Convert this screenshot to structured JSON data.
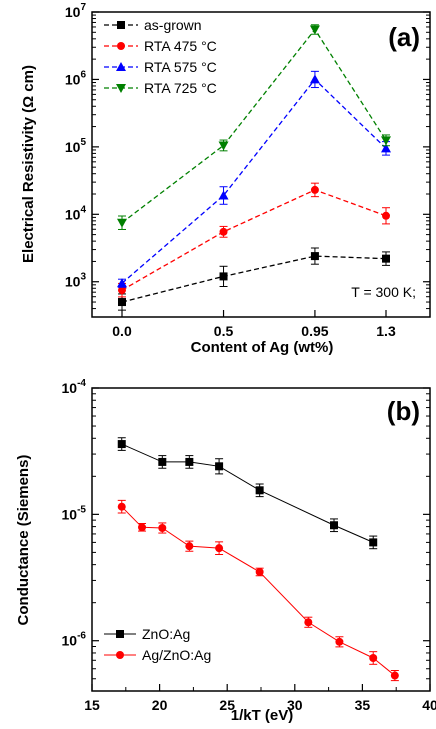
{
  "chart_data": [
    {
      "type": "line",
      "panel_label": "(a)",
      "xlabel": "Content of Ag  (wt%)",
      "ylabel": "Electrical Resistivity (Ω cm)",
      "categories": [
        "0.0",
        "0.5",
        "0.95",
        "1.3"
      ],
      "y_scale": "log",
      "ylim": [
        300,
        10000000
      ],
      "y_ticks": [
        {
          "value": 1000,
          "base": "10",
          "exp": "3"
        },
        {
          "value": 10000,
          "base": "10",
          "exp": "4"
        },
        {
          "value": 100000,
          "base": "10",
          "exp": "5"
        },
        {
          "value": 1000000,
          "base": "10",
          "exp": "6"
        },
        {
          "value": 10000000,
          "base": "10",
          "exp": "7"
        }
      ],
      "annotation": "T = 300 K;",
      "legend_position": "top-left",
      "series": [
        {
          "name": "as-grown",
          "marker": "square",
          "color": "#000000",
          "values": [
            500,
            1200,
            2400,
            2200
          ],
          "errors": [
            0.12,
            0.15,
            0.12,
            0.1
          ]
        },
        {
          "name": "RTA 475 °C",
          "marker": "circle",
          "color": "#ff0000",
          "values": [
            750,
            5500,
            23000,
            9500
          ],
          "errors": [
            0.1,
            0.08,
            0.1,
            0.12
          ]
        },
        {
          "name": "RTA 575 °C",
          "marker": "triangle-up",
          "color": "#0000ff",
          "values": [
            950,
            19000,
            1000000,
            95000
          ],
          "errors": [
            0.06,
            0.13,
            0.12,
            0.1
          ]
        },
        {
          "name": "RTA 725 °C",
          "marker": "triangle-down",
          "color": "#008000",
          "values": [
            7500,
            105000,
            5500000,
            125000
          ],
          "errors": [
            0.1,
            0.08,
            0.07,
            0.08
          ]
        }
      ]
    },
    {
      "type": "line",
      "panel_label": "(b)",
      "xlabel": "1/kT (eV)",
      "ylabel": "Conductance (Siemens)",
      "xlim": [
        15,
        40
      ],
      "x_ticks": [
        "15",
        "20",
        "25",
        "30",
        "35",
        "40"
      ],
      "y_scale": "log",
      "ylim": [
        4e-07,
        0.0001
      ],
      "y_ticks": [
        {
          "value": 1e-06,
          "base": "10",
          "exp": "-6"
        },
        {
          "value": 1e-05,
          "base": "10",
          "exp": "-5"
        },
        {
          "value": 0.0001,
          "base": "10",
          "exp": "-4"
        }
      ],
      "legend_position": "bottom-left",
      "series": [
        {
          "name": "ZnO:Ag",
          "marker": "square",
          "color": "#000000",
          "x": [
            17.2,
            20.2,
            22.2,
            24.4,
            27.4,
            32.9,
            35.8
          ],
          "y": [
            3.6e-05,
            2.6e-05,
            2.6e-05,
            2.4e-05,
            1.55e-05,
            8.2e-06,
            6e-06
          ],
          "errors": [
            0.05,
            0.05,
            0.05,
            0.06,
            0.05,
            0.05,
            0.05
          ]
        },
        {
          "name": "Ag/ZnO:Ag",
          "marker": "circle",
          "color": "#ff0000",
          "x": [
            17.2,
            18.7,
            20.2,
            22.2,
            24.4,
            27.4,
            31.0,
            33.3,
            35.8,
            37.4
          ],
          "y": [
            1.15e-05,
            7.9e-06,
            7.8e-06,
            5.6e-06,
            5.4e-06,
            3.5e-06,
            1.4e-06,
            9.8e-07,
            7.3e-07,
            5.3e-07
          ],
          "errors": [
            0.05,
            0.03,
            0.04,
            0.04,
            0.05,
            0.03,
            0.04,
            0.04,
            0.05,
            0.04
          ]
        }
      ]
    }
  ]
}
